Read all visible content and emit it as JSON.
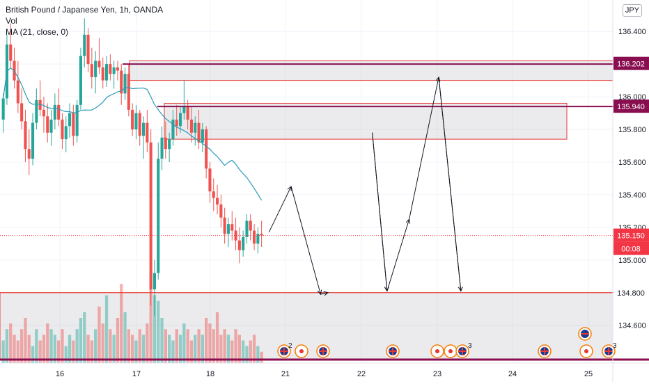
{
  "header": {
    "title": "British Pound / Japanese Yen, 1h, OANDA",
    "vol_label": "Vol",
    "ma_label": "MA (21, close, 0)",
    "currency": "JPY"
  },
  "chart_data": {
    "type": "candlestick",
    "symbol": "GBPJPY",
    "x_ticks": [
      "16",
      "17",
      "18",
      "21",
      "22",
      "23",
      "24",
      "25"
    ],
    "y_ticks": [
      "136.400",
      "136.200",
      "136.000",
      "135.800",
      "135.600",
      "135.400",
      "135.200",
      "135.000",
      "134.800",
      "134.600"
    ],
    "ylim": [
      134.39,
      136.55
    ],
    "price_tags": [
      {
        "value": "136.202",
        "color": "#880e4f"
      },
      {
        "value": "135.940",
        "color": "#880e4f"
      },
      {
        "value": "135.150",
        "color": "#f23645"
      },
      {
        "value": "00:08",
        "color": "#f23645"
      },
      {
        "value": "134.800",
        "color": "#ffffff"
      }
    ],
    "zones": [
      {
        "from": 136.1,
        "to": 136.22
      },
      {
        "from": 135.74,
        "to": 135.96
      },
      {
        "from": 134.39,
        "to": 134.8
      }
    ],
    "horizontal_lines": [
      136.2,
      135.94,
      134.8,
      134.39
    ],
    "last_price": 135.15,
    "ma_period": 21,
    "projection_path": [
      {
        "bar": 72,
        "price": 135.17
      },
      {
        "bar": 78,
        "price": 135.45
      },
      {
        "bar": 86,
        "price": 134.79
      },
      {
        "bar": 88,
        "price": 134.8
      },
      {
        "bar": 100,
        "price": 135.78
      },
      {
        "bar": 104,
        "price": 134.81
      },
      {
        "bar": 110,
        "price": 135.25
      },
      {
        "bar": 118,
        "price": 136.12
      },
      {
        "bar": 124,
        "price": 134.81
      }
    ],
    "event_markers": [
      {
        "day": "21",
        "label": "2"
      },
      {
        "day": "23",
        "label": "3"
      },
      {
        "day": "25",
        "label": "3"
      }
    ],
    "colors": {
      "up": "#26a69a",
      "down": "#ef5350",
      "ma": "#2a9ab8"
    },
    "candles": [
      [
        135.86,
        136.02,
        135.78,
        135.99
      ],
      [
        135.99,
        136.38,
        135.95,
        136.32
      ],
      [
        136.32,
        136.45,
        136.18,
        136.22
      ],
      [
        136.22,
        136.3,
        136.05,
        136.1
      ],
      [
        136.1,
        136.22,
        135.9,
        135.96
      ],
      [
        135.96,
        136.05,
        135.8,
        135.85
      ],
      [
        135.85,
        135.92,
        135.6,
        135.68
      ],
      [
        135.68,
        135.8,
        135.52,
        135.62
      ],
      [
        135.62,
        135.9,
        135.58,
        135.84
      ],
      [
        135.84,
        136.05,
        135.8,
        135.98
      ],
      [
        135.98,
        136.1,
        135.88,
        135.92
      ],
      [
        135.92,
        136.0,
        135.78,
        135.88
      ],
      [
        135.88,
        135.96,
        135.72,
        135.78
      ],
      [
        135.78,
        135.92,
        135.7,
        135.86
      ],
      [
        135.86,
        136.02,
        135.8,
        135.95
      ],
      [
        135.95,
        136.05,
        135.82,
        135.86
      ],
      [
        135.86,
        135.9,
        135.68,
        135.74
      ],
      [
        135.74,
        135.88,
        135.66,
        135.82
      ],
      [
        135.82,
        135.96,
        135.75,
        135.9
      ],
      [
        135.9,
        135.95,
        135.7,
        135.76
      ],
      [
        135.76,
        135.98,
        135.72,
        135.95
      ],
      [
        135.95,
        136.3,
        135.92,
        136.25
      ],
      [
        136.25,
        136.48,
        136.18,
        136.38
      ],
      [
        136.38,
        136.42,
        136.15,
        136.2
      ],
      [
        136.2,
        136.3,
        136.05,
        136.12
      ],
      [
        136.12,
        136.28,
        136.02,
        136.22
      ],
      [
        136.22,
        136.36,
        136.14,
        136.18
      ],
      [
        136.18,
        136.24,
        136.05,
        136.1
      ],
      [
        136.1,
        136.25,
        136.06,
        136.2
      ],
      [
        136.2,
        136.26,
        136.1,
        136.14
      ],
      [
        136.14,
        136.22,
        136.05,
        136.18
      ],
      [
        136.18,
        136.22,
        136.1,
        136.16
      ],
      [
        136.16,
        136.2,
        135.95,
        136.02
      ],
      [
        136.02,
        136.18,
        135.98,
        136.14
      ],
      [
        136.14,
        136.2,
        135.88,
        135.92
      ],
      [
        135.92,
        135.96,
        135.76,
        135.8
      ],
      [
        135.8,
        135.95,
        135.74,
        135.9
      ],
      [
        135.9,
        135.92,
        135.7,
        135.76
      ],
      [
        135.76,
        135.88,
        135.62,
        135.84
      ],
      [
        135.84,
        135.92,
        135.66,
        135.72
      ],
      [
        135.72,
        135.8,
        134.72,
        134.82
      ],
      [
        134.82,
        135.0,
        134.66,
        134.92
      ],
      [
        134.92,
        135.72,
        134.88,
        135.62
      ],
      [
        135.62,
        135.82,
        135.55,
        135.75
      ],
      [
        135.75,
        135.85,
        135.62,
        135.68
      ],
      [
        135.68,
        135.78,
        135.6,
        135.74
      ],
      [
        135.74,
        135.92,
        135.7,
        135.86
      ],
      [
        135.86,
        135.95,
        135.76,
        135.82
      ],
      [
        135.82,
        135.94,
        135.78,
        135.9
      ],
      [
        135.9,
        136.1,
        135.86,
        135.94
      ],
      [
        135.94,
        135.98,
        135.8,
        135.86
      ],
      [
        135.86,
        135.94,
        135.72,
        135.78
      ],
      [
        135.78,
        135.88,
        135.7,
        135.84
      ],
      [
        135.84,
        135.92,
        135.68,
        135.72
      ],
      [
        135.72,
        135.84,
        135.66,
        135.8
      ],
      [
        135.8,
        135.82,
        135.5,
        135.56
      ],
      [
        135.56,
        135.6,
        135.35,
        135.42
      ],
      [
        135.42,
        135.5,
        135.3,
        135.38
      ],
      [
        135.38,
        135.46,
        135.28,
        135.34
      ],
      [
        135.34,
        135.4,
        135.2,
        135.26
      ],
      [
        135.26,
        135.32,
        135.1,
        135.16
      ],
      [
        135.16,
        135.26,
        135.08,
        135.22
      ],
      [
        135.22,
        135.3,
        135.12,
        135.18
      ],
      [
        135.18,
        135.26,
        135.06,
        135.12
      ],
      [
        135.12,
        135.2,
        134.98,
        135.06
      ],
      [
        135.06,
        135.18,
        135.02,
        135.14
      ],
      [
        135.14,
        135.28,
        135.1,
        135.24
      ],
      [
        135.24,
        135.28,
        135.12,
        135.18
      ],
      [
        135.18,
        135.22,
        135.06,
        135.1
      ],
      [
        135.1,
        135.2,
        135.04,
        135.16
      ],
      [
        135.16,
        135.24,
        135.08,
        135.15
      ]
    ],
    "volumes": [
      4,
      6,
      7,
      5,
      4,
      6,
      8,
      5,
      3,
      6,
      4,
      5,
      7,
      6,
      5,
      4,
      6,
      3,
      5,
      4,
      6,
      8,
      9,
      5,
      4,
      6,
      10,
      7,
      12,
      6,
      5,
      8,
      14,
      9,
      6,
      5,
      4,
      6,
      5,
      7,
      16,
      12,
      11,
      8,
      6,
      5,
      4,
      6,
      5,
      7,
      6,
      4,
      5,
      6,
      5,
      8,
      7,
      6,
      9,
      5,
      6,
      5,
      4,
      6,
      5,
      4,
      3,
      4,
      5,
      3,
      2
    ]
  }
}
